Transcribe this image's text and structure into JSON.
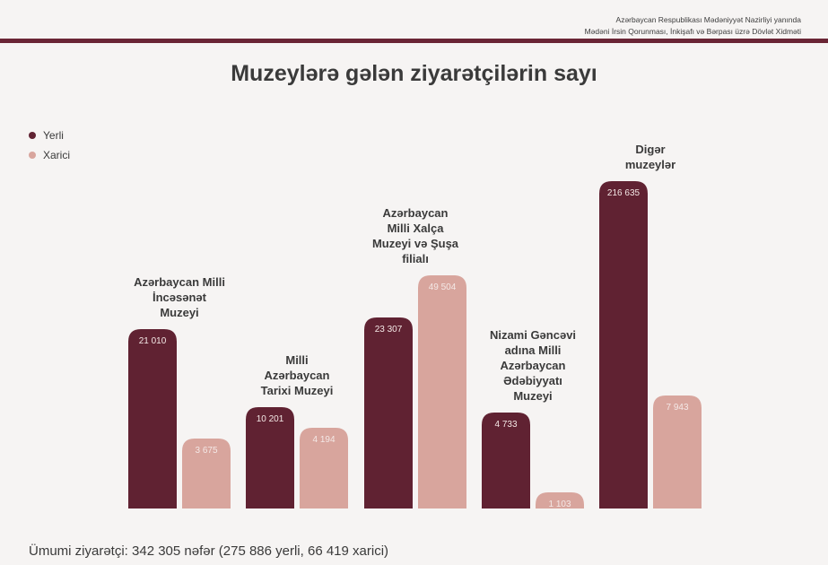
{
  "header": {
    "org_line1": "Azərbaycan Respublikası Mədəniyyət Nazirliyi yanında",
    "org_line2": "Mədəni İrsin Qorunması, İnkişafı və Bərpası üzrə Dövlət Xidməti"
  },
  "title": "Muzeylərə gələn ziyarətçilərin sayı",
  "legend": [
    {
      "label": "Yerli",
      "color": "#602232"
    },
    {
      "label": "Xarici",
      "color": "#d8a59d"
    }
  ],
  "chart_data": {
    "type": "bar",
    "title": "Muzeylərə gələn ziyarətçilərin sayı",
    "categories": [
      [
        "Azərbaycan Milli",
        "İncəsənət",
        "Muzeyi"
      ],
      [
        "Milli",
        "Azərbaycan",
        "Tarixi Muzeyi"
      ],
      [
        "Azərbaycan",
        "Milli Xalça",
        "Muzeyi və Şuşa",
        "filialı"
      ],
      [
        "Nizami Gəncəvi",
        "adına Milli",
        "Azərbaycan",
        "Ədəbiyyatı",
        "Muzeyi"
      ],
      [
        "Digər",
        "muzeylər"
      ]
    ],
    "series": [
      {
        "name": "Yerli",
        "color": "#602232",
        "values": [
          21010,
          10201,
          23307,
          4733,
          216635
        ],
        "labels": [
          "21 010",
          "10 201",
          "23 307",
          "4 733",
          "216 635"
        ]
      },
      {
        "name": "Xarici",
        "color": "#d8a59d",
        "values": [
          3675,
          4194,
          49504,
          1103,
          7943
        ],
        "labels": [
          "3 675",
          "4 194",
          "49 504",
          "1 103",
          "7 943"
        ]
      }
    ],
    "grid": false,
    "legend_position": "top-left",
    "scale_note": "bars are not drawn to a linear scale"
  },
  "footer": "Ümumi ziyarətçi: 342 305 nəfər (275 886 yerli, 66 419 xarici)"
}
